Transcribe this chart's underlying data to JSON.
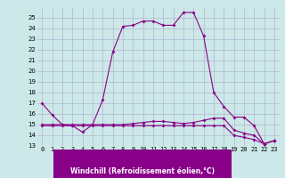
{
  "xlabel": "Windchill (Refroidissement éolien,°C)",
  "background_color": "#cce8e8",
  "grid_color": "#aaaacc",
  "line_color": "#880088",
  "x_hours": [
    0,
    1,
    2,
    3,
    4,
    5,
    6,
    7,
    8,
    9,
    10,
    11,
    12,
    13,
    14,
    15,
    16,
    17,
    18,
    19,
    20,
    21,
    22,
    23
  ],
  "series1": [
    17,
    15.9,
    15,
    14.9,
    14.3,
    15.0,
    17.3,
    21.8,
    24.2,
    24.3,
    24.7,
    24.7,
    24.3,
    24.3,
    25.5,
    25.5,
    23.3,
    18.0,
    16.7,
    15.7,
    15.7,
    14.9,
    13.2,
    13.5
  ],
  "series2": [
    15,
    15,
    15,
    15,
    15,
    15,
    15,
    15,
    15,
    15.1,
    15.2,
    15.3,
    15.3,
    15.2,
    15.1,
    15.2,
    15.4,
    15.6,
    15.6,
    14.5,
    14.2,
    14.0,
    13.2,
    13.5
  ],
  "series3": [
    14.9,
    14.9,
    14.9,
    14.9,
    14.9,
    14.9,
    14.9,
    14.9,
    14.9,
    14.9,
    14.9,
    14.9,
    14.9,
    14.9,
    14.9,
    14.9,
    14.9,
    14.9,
    14.9,
    14.0,
    13.8,
    13.6,
    13.2,
    13.5
  ],
  "ylim": [
    13,
    26
  ],
  "yticks": [
    13,
    14,
    15,
    16,
    17,
    18,
    19,
    20,
    21,
    22,
    23,
    24,
    25
  ],
  "xticks": [
    0,
    1,
    2,
    3,
    4,
    5,
    6,
    7,
    8,
    9,
    10,
    11,
    12,
    13,
    14,
    15,
    16,
    17,
    18,
    19,
    20,
    21,
    22,
    23
  ],
  "marker": "D",
  "markersize": 2.0,
  "linewidth": 0.8,
  "tick_fontsize": 5.0,
  "xlabel_fontsize": 5.5,
  "xlabel_bg": "#880088",
  "xlabel_fg": "#ffffff"
}
